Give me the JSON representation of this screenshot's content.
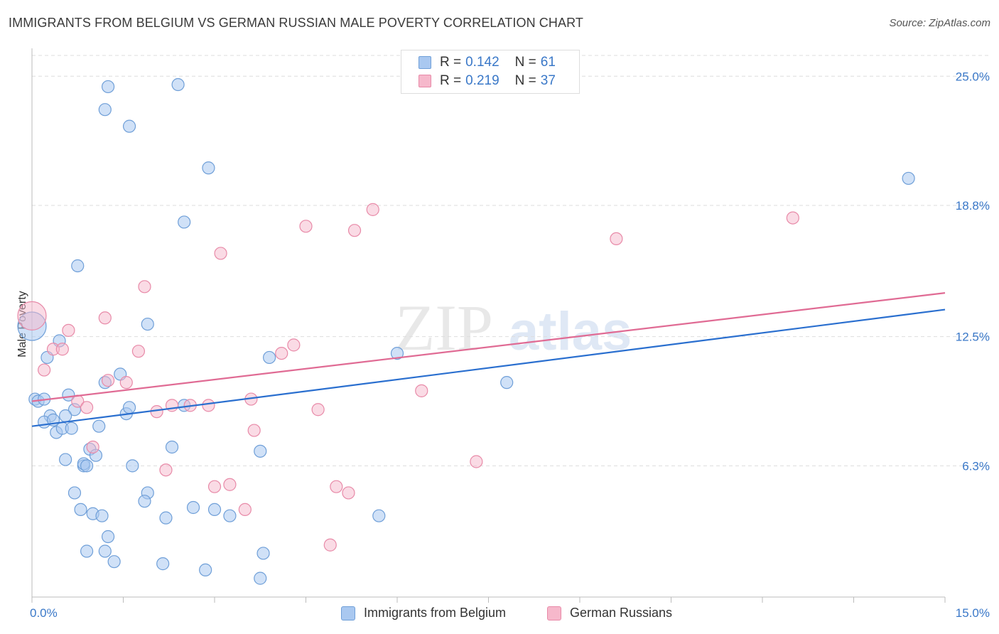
{
  "header": {
    "title": "IMMIGRANTS FROM BELGIUM VS GERMAN RUSSIAN MALE POVERTY CORRELATION CHART",
    "source": "Source: ZipAtlas.com"
  },
  "watermark": {
    "zip": "ZIP",
    "atlas": "atlas"
  },
  "legend": {
    "rows": [
      {
        "r_label": "R =",
        "r_value": "0.142",
        "n_label": "N =",
        "n_value": "61",
        "color": "#a9c8f0"
      },
      {
        "r_label": "R =",
        "r_value": "0.219",
        "n_label": "N =",
        "n_value": "37",
        "color": "#f6b8cb"
      }
    ]
  },
  "bottom_legend": {
    "items": [
      {
        "label": "Immigrants from Belgium",
        "color": "#a9c8f0"
      },
      {
        "label": "German Russians",
        "color": "#f6b8cb"
      }
    ]
  },
  "colors": {
    "blue_fill": "#a9c8f0",
    "blue_stroke": "#6f9fd8",
    "blue_line": "#2a6fcf",
    "pink_fill": "#f6b8cb",
    "pink_stroke": "#e88aa8",
    "pink_line": "#e06b94",
    "tick_text": "#3a78c8"
  },
  "chart_data": {
    "type": "scatter",
    "title": "IMMIGRANTS FROM BELGIUM VS GERMAN RUSSIAN MALE POVERTY CORRELATION CHART",
    "xlabel": "",
    "ylabel": "Male Poverty",
    "xlim": [
      0,
      15
    ],
    "ylim": [
      0,
      26
    ],
    "x_tick_labels": [
      "0.0%",
      "15.0%"
    ],
    "y_ticks": [
      {
        "value": 6.3,
        "label": "6.3%"
      },
      {
        "value": 12.5,
        "label": "12.5%"
      },
      {
        "value": 18.8,
        "label": "18.8%"
      },
      {
        "value": 25.0,
        "label": "25.0%"
      }
    ],
    "grid": "horizontal dashed",
    "legend_position": "top-center",
    "series": [
      {
        "name": "Immigrants from Belgium",
        "trend": {
          "x": [
            0,
            15
          ],
          "y": [
            8.2,
            13.8
          ]
        },
        "points": [
          [
            0.0,
            13.0
          ],
          [
            0.05,
            9.5
          ],
          [
            0.1,
            9.4
          ],
          [
            0.2,
            9.5
          ],
          [
            0.25,
            11.5
          ],
          [
            0.3,
            8.7
          ],
          [
            0.2,
            8.4
          ],
          [
            0.35,
            8.5
          ],
          [
            0.4,
            7.9
          ],
          [
            0.5,
            8.1
          ],
          [
            0.45,
            12.3
          ],
          [
            0.6,
            9.7
          ],
          [
            0.65,
            8.1
          ],
          [
            0.7,
            9.0
          ],
          [
            0.55,
            8.7
          ],
          [
            0.55,
            6.6
          ],
          [
            0.75,
            15.9
          ],
          [
            0.8,
            4.2
          ],
          [
            0.85,
            6.3
          ],
          [
            0.85,
            6.4
          ],
          [
            0.9,
            6.3
          ],
          [
            0.95,
            7.1
          ],
          [
            0.7,
            5.0
          ],
          [
            1.05,
            6.8
          ],
          [
            1.0,
            4.0
          ],
          [
            1.15,
            3.9
          ],
          [
            0.9,
            2.2
          ],
          [
            1.2,
            2.2
          ],
          [
            1.25,
            2.9
          ],
          [
            1.1,
            8.2
          ],
          [
            1.2,
            10.3
          ],
          [
            1.25,
            24.5
          ],
          [
            1.2,
            23.4
          ],
          [
            1.45,
            10.7
          ],
          [
            1.55,
            8.8
          ],
          [
            1.6,
            9.1
          ],
          [
            1.6,
            22.6
          ],
          [
            1.65,
            6.3
          ],
          [
            1.9,
            5.0
          ],
          [
            1.85,
            4.6
          ],
          [
            1.9,
            13.1
          ],
          [
            2.15,
            1.6
          ],
          [
            2.2,
            3.8
          ],
          [
            2.3,
            7.2
          ],
          [
            2.4,
            24.6
          ],
          [
            2.5,
            18.0
          ],
          [
            2.5,
            9.2
          ],
          [
            2.65,
            4.3
          ],
          [
            2.85,
            1.3
          ],
          [
            2.9,
            20.6
          ],
          [
            3.0,
            4.2
          ],
          [
            3.25,
            3.9
          ],
          [
            3.75,
            0.9
          ],
          [
            3.75,
            7.0
          ],
          [
            3.8,
            2.1
          ],
          [
            3.9,
            11.5
          ],
          [
            5.7,
            3.9
          ],
          [
            6.0,
            11.7
          ],
          [
            7.8,
            10.3
          ],
          [
            14.4,
            20.1
          ],
          [
            1.35,
            1.7
          ]
        ]
      },
      {
        "name": "German Russians",
        "trend": {
          "x": [
            0,
            15
          ],
          "y": [
            9.4,
            14.6
          ]
        },
        "points": [
          [
            0.0,
            13.5
          ],
          [
            0.2,
            10.9
          ],
          [
            0.35,
            11.9
          ],
          [
            0.5,
            11.9
          ],
          [
            0.6,
            12.8
          ],
          [
            0.75,
            9.4
          ],
          [
            0.9,
            9.1
          ],
          [
            1.0,
            7.2
          ],
          [
            1.2,
            13.4
          ],
          [
            1.25,
            10.4
          ],
          [
            1.55,
            10.3
          ],
          [
            1.75,
            11.8
          ],
          [
            1.85,
            14.9
          ],
          [
            2.05,
            8.9
          ],
          [
            2.2,
            6.1
          ],
          [
            2.3,
            9.2
          ],
          [
            2.6,
            9.2
          ],
          [
            2.9,
            9.2
          ],
          [
            3.0,
            5.3
          ],
          [
            3.1,
            16.5
          ],
          [
            3.25,
            5.4
          ],
          [
            3.5,
            4.2
          ],
          [
            3.6,
            9.5
          ],
          [
            3.65,
            8.0
          ],
          [
            4.1,
            11.7
          ],
          [
            4.3,
            12.1
          ],
          [
            4.5,
            17.8
          ],
          [
            4.7,
            9.0
          ],
          [
            4.9,
            2.5
          ],
          [
            5.0,
            5.3
          ],
          [
            5.2,
            5.0
          ],
          [
            5.3,
            17.6
          ],
          [
            5.6,
            18.6
          ],
          [
            6.4,
            9.9
          ],
          [
            7.3,
            6.5
          ],
          [
            9.6,
            17.2
          ],
          [
            12.5,
            18.2
          ]
        ]
      }
    ]
  }
}
